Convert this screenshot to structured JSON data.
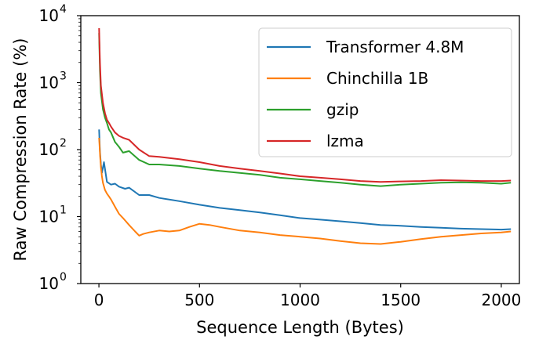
{
  "chart_data": {
    "type": "line",
    "xlabel": "Sequence Length (Bytes)",
    "ylabel": "Raw Compression Rate (%)",
    "y_scale": "log",
    "xlim": [
      -90,
      2090
    ],
    "ylim": [
      1,
      10000
    ],
    "x_ticks": [
      0,
      500,
      1000,
      1500,
      2000
    ],
    "x_tick_labels": [
      "0",
      "500",
      "1000",
      "1500",
      "2000"
    ],
    "y_ticks": [
      1,
      10,
      100,
      1000,
      10000
    ],
    "y_tick_labels": [
      {
        "base": "10",
        "exp": "0"
      },
      {
        "base": "10",
        "exp": "1"
      },
      {
        "base": "10",
        "exp": "2"
      },
      {
        "base": "10",
        "exp": "3"
      },
      {
        "base": "10",
        "exp": "4"
      }
    ],
    "legend_position": "top-right",
    "grid": false,
    "series": [
      {
        "name": "Transformer 4.8M",
        "color": "#1f77b4",
        "x": [
          1,
          5,
          10,
          15,
          25,
          40,
          60,
          80,
          100,
          130,
          150,
          200,
          250,
          300,
          400,
          500,
          600,
          700,
          800,
          900,
          1000,
          1100,
          1200,
          1300,
          1400,
          1500,
          1600,
          1700,
          1800,
          1900,
          2000,
          2048
        ],
        "y": [
          200,
          95,
          60,
          45,
          65,
          33,
          30,
          31,
          28,
          26,
          27,
          21,
          21,
          19,
          17,
          15,
          13.5,
          12.5,
          11.5,
          10.5,
          9.5,
          9,
          8.5,
          8,
          7.5,
          7.3,
          7,
          6.8,
          6.6,
          6.5,
          6.4,
          6.5
        ]
      },
      {
        "name": "Chinchilla 1B",
        "color": "#ff7f0e",
        "x": [
          1,
          3,
          6,
          10,
          15,
          20,
          30,
          40,
          50,
          60,
          80,
          100,
          120,
          150,
          180,
          200,
          220,
          250,
          300,
          350,
          400,
          450,
          500,
          550,
          600,
          700,
          800,
          900,
          1000,
          1100,
          1200,
          1300,
          1400,
          1500,
          1600,
          1700,
          1800,
          1900,
          2000,
          2048
        ],
        "y": [
          150,
          120,
          80,
          55,
          40,
          32,
          25,
          22,
          20,
          18,
          14,
          11,
          9.5,
          7.5,
          6,
          5.2,
          5.5,
          5.8,
          6.2,
          6,
          6.2,
          7,
          7.8,
          7.5,
          7,
          6.2,
          5.8,
          5.3,
          5,
          4.7,
          4.3,
          4,
          3.9,
          4.2,
          4.6,
          5,
          5.3,
          5.6,
          5.8,
          6
        ]
      },
      {
        "name": "gzip",
        "color": "#2ca02c",
        "x": [
          1,
          5,
          10,
          20,
          30,
          40,
          50,
          60,
          80,
          100,
          120,
          150,
          200,
          250,
          300,
          400,
          500,
          600,
          700,
          800,
          900,
          1000,
          1100,
          1200,
          1300,
          1400,
          1500,
          1600,
          1700,
          1800,
          1900,
          2000,
          2048
        ],
        "y": [
          5500,
          1500,
          700,
          400,
          300,
          250,
          200,
          180,
          130,
          110,
          90,
          95,
          70,
          60,
          60,
          57,
          52,
          48,
          45,
          42,
          38,
          36,
          34,
          32,
          30,
          28.5,
          30,
          31,
          32,
          32.5,
          32,
          31,
          32
        ]
      },
      {
        "name": "lzma",
        "color": "#d62728",
        "x": [
          1,
          5,
          10,
          20,
          30,
          40,
          50,
          60,
          80,
          100,
          120,
          150,
          200,
          250,
          300,
          400,
          500,
          600,
          700,
          800,
          900,
          1000,
          1100,
          1200,
          1300,
          1400,
          1500,
          1600,
          1700,
          1800,
          1900,
          2000,
          2048
        ],
        "y": [
          6500,
          2000,
          900,
          500,
          350,
          280,
          250,
          220,
          180,
          160,
          150,
          140,
          100,
          80,
          78,
          72,
          65,
          57,
          52,
          48,
          44,
          40,
          38,
          36,
          34,
          33,
          33.5,
          34,
          35,
          34.5,
          34,
          34,
          34.5
        ]
      }
    ]
  }
}
